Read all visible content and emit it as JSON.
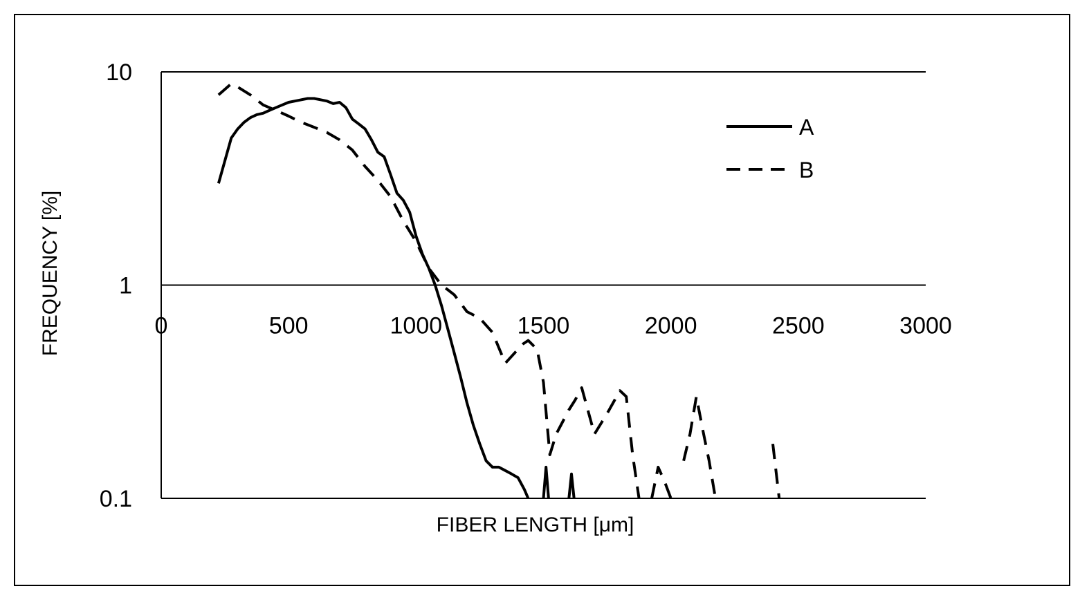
{
  "chart_data": {
    "type": "line",
    "title": "",
    "xlabel": "FIBER LENGTH [μm]",
    "ylabel": "FREQUENCY [%]",
    "xlim": [
      0,
      3000
    ],
    "ylim": [
      0.1,
      10
    ],
    "y_scale": "log",
    "x_ticks": [
      "0",
      "500",
      "1000",
      "1500",
      "2000",
      "2500",
      "3000"
    ],
    "y_ticks": [
      "10",
      "1",
      "0.1"
    ],
    "y_tick_values": [
      10,
      1,
      0.1
    ],
    "grid": "horizontal",
    "legend_position": "top-right",
    "series": [
      {
        "name": "A",
        "line_style": "solid",
        "color": "#000000",
        "x": [
          225,
          275,
          300,
          325,
          350,
          375,
          400,
          425,
          450,
          475,
          500,
          525,
          550,
          575,
          600,
          625,
          650,
          675,
          700,
          725,
          750,
          775,
          800,
          825,
          850,
          875,
          900,
          925,
          950,
          975,
          1000,
          1025,
          1050,
          1075,
          1100,
          1125,
          1150,
          1175,
          1200,
          1225,
          1250,
          1275,
          1300,
          1325,
          1350,
          1375,
          1400,
          1425,
          1440,
          1450,
          1500,
          1510,
          1520,
          1530,
          1540,
          1600,
          1610,
          1620,
          1630,
          1640
        ],
        "values": [
          3.0,
          4.9,
          5.4,
          5.8,
          6.1,
          6.3,
          6.4,
          6.6,
          6.8,
          7.0,
          7.2,
          7.3,
          7.4,
          7.5,
          7.5,
          7.4,
          7.3,
          7.1,
          7.2,
          6.8,
          6.0,
          5.7,
          5.4,
          4.8,
          4.2,
          4.0,
          3.3,
          2.7,
          2.5,
          2.2,
          1.7,
          1.4,
          1.2,
          1.0,
          0.8,
          0.62,
          0.48,
          0.37,
          0.28,
          0.22,
          0.18,
          0.15,
          0.14,
          0.14,
          0.135,
          0.13,
          0.125,
          0.11,
          0.1,
          null,
          0.1,
          0.14,
          0.1,
          null,
          null,
          0.1,
          0.13,
          0.1,
          null,
          null
        ]
      },
      {
        "name": "B",
        "line_style": "dashed",
        "color": "#000000",
        "x": [
          225,
          275,
          300,
          350,
          400,
          450,
          500,
          550,
          600,
          650,
          700,
          750,
          800,
          850,
          900,
          950,
          1000,
          1050,
          1100,
          1125,
          1150,
          1200,
          1250,
          1300,
          1350,
          1400,
          1420,
          1440,
          1475,
          1500,
          1525,
          1550,
          1600,
          1625,
          1650,
          1700,
          1750,
          1800,
          1825,
          1850,
          1875,
          1900,
          1925,
          1950,
          1975,
          2000,
          2025,
          2050,
          2075,
          2100,
          2125,
          2150,
          2175,
          2200,
          2225,
          2250,
          2300,
          2350,
          2400,
          2425
        ],
        "values": [
          7.8,
          8.8,
          8.5,
          7.8,
          7.0,
          6.6,
          6.2,
          5.8,
          5.5,
          5.2,
          4.8,
          4.3,
          3.6,
          3.1,
          2.6,
          2.0,
          1.6,
          1.2,
          1.0,
          0.95,
          0.9,
          0.75,
          0.7,
          0.6,
          0.43,
          0.5,
          0.53,
          0.55,
          0.5,
          0.35,
          0.16,
          0.2,
          0.26,
          0.29,
          0.33,
          0.2,
          0.25,
          0.32,
          0.3,
          0.16,
          0.1,
          null,
          0.1,
          0.14,
          0.12,
          0.1,
          null,
          0.15,
          0.2,
          0.3,
          0.21,
          0.15,
          0.1,
          null,
          null,
          null,
          null,
          null,
          0.18,
          0.1
        ]
      }
    ]
  }
}
